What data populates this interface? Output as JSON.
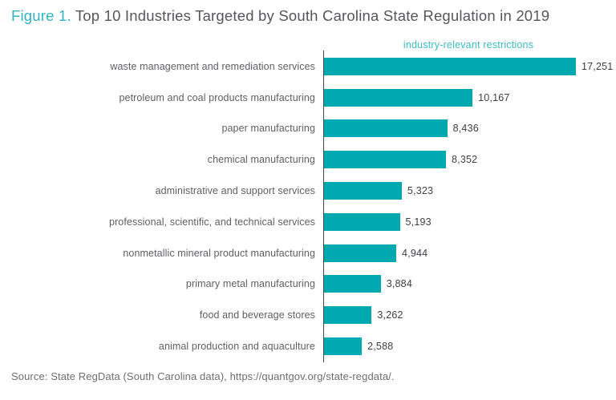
{
  "header": {
    "figure_label": "Figure 1.",
    "title": " Top 10 Industries Targeted by South Carolina State Regulation in 2019"
  },
  "chart_data": {
    "type": "bar",
    "orientation": "horizontal",
    "title": "Top 10 Industries Targeted by South Carolina State Regulation in 2019",
    "series_label": "industry-relevant restrictions",
    "categories": [
      "waste management and remediation services",
      "petroleum and coal products manufacturing",
      "paper manufacturing",
      "chemical manufacturing",
      "administrative and support services",
      "professional, scientific, and technical services",
      "nonmetallic mineral product manufacturing",
      "primary metal manufacturing",
      "food and beverage stores",
      "animal production and aquaculture"
    ],
    "values": [
      17251,
      10167,
      8436,
      8352,
      5323,
      5193,
      4944,
      3884,
      3262,
      2588
    ],
    "value_labels": [
      "17,251",
      "10,167",
      "8,436",
      "8,352",
      "5,323",
      "5,193",
      "4,944",
      "3,884",
      "3,262",
      "2,588"
    ],
    "xlim": [
      0,
      17251
    ],
    "legend_position": "top",
    "grid": false,
    "bar_color": "#00a9b0"
  },
  "colors": {
    "bar_teal": "#00a9b0",
    "accent_teal_text": "#2fb4c0",
    "title_gray": "#54565a",
    "label_gray": "#5e5f63",
    "value_gray": "#3d3e42",
    "source_gray": "#6d6e71",
    "axis_dark": "#454549"
  },
  "footer": {
    "source": "Source: State RegData (South Carolina data), https://quantgov.org/state-regdata/."
  }
}
